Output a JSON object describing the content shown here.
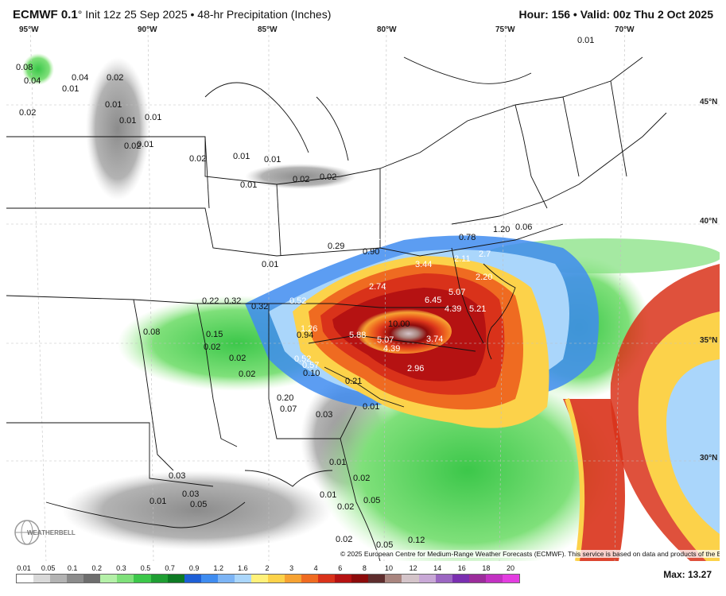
{
  "header": {
    "model": "ECMWF 0.1",
    "degree": "°",
    "init": "Init 12z 25 Sep 2025 • 48-hr Precipitation (Inches)",
    "valid": "Hour: 156 • Valid: 00z Thu 2 Oct 2025"
  },
  "coords": {
    "lon_95": "95°W",
    "lon_90": "90°W",
    "lon_85": "85°W",
    "lon_80": "80°W",
    "lon_75": "75°W",
    "lon_70": "70°W",
    "lat_45": "45°N",
    "lat_40": "40°N",
    "lat_35": "35°N",
    "lat_30": "30°N"
  },
  "labels": [
    "0.08",
    "0.04",
    "0.02",
    "0.04",
    "0.01",
    "0.02",
    "0.01",
    "0.01",
    "0.01",
    "0.01",
    "0.02",
    "0.01",
    "0.01",
    "0.02",
    "0.01",
    "0.02",
    "0.02",
    "0.01",
    "0.29",
    "0.55",
    "0.49",
    "0.90",
    "0.78",
    "1.20",
    "0.06",
    "0.01",
    "3.44",
    "2.74",
    "5.07",
    "6.45",
    "4.39",
    "5.21",
    "0.22",
    "0.32",
    "0.32",
    "0.52",
    "0.08",
    "0.15",
    "0.02",
    "1.26",
    "0.94",
    "5.88",
    "10.00",
    "5.07",
    "4.39",
    "3.74",
    "2.96",
    "0.02",
    "0.02",
    "0.52",
    "0.57",
    "0.10",
    "0.21",
    "0.20",
    "0.07",
    "0.03",
    "0.01",
    "0.01",
    "0.03",
    "0.03",
    "0.01",
    "0.05",
    "0.02",
    "0.01",
    "0.02",
    "0.05",
    "0.12",
    "0.02",
    "0.05",
    "2.11",
    "2.20",
    "2.7"
  ],
  "credit": "© 2025 European Centre for Medium-Range Weather Forecasts (ECMWF). This service is based on data and products of the ECMWF.",
  "logo": "WEATHERBELL",
  "scale": {
    "ticks": [
      "0.01",
      "0.05",
      "0.1",
      "0.2",
      "0.3",
      "0.5",
      "0.7",
      "0.9",
      "1.2",
      "1.6",
      "2",
      "3",
      "4",
      "6",
      "8",
      "10",
      "12",
      "14",
      "16",
      "18",
      "20"
    ],
    "colors": [
      "#ffffff",
      "#d9d9d9",
      "#b3b3b3",
      "#8c8c8c",
      "#6e6e6e",
      "#b4f0a8",
      "#7fe07a",
      "#3cc74a",
      "#1f9e33",
      "#0e7a24",
      "#1e5fd6",
      "#3f8cf0",
      "#7cb4f5",
      "#aad6fb",
      "#fff17a",
      "#fcd24a",
      "#f6a232",
      "#ef6b21",
      "#d9321a",
      "#b51212",
      "#8c0b0b",
      "#5e2d2d",
      "#a9857f",
      "#d4c4c9",
      "#c8a8d6",
      "#9b66c2",
      "#7a2fb0",
      "#9b2c9b",
      "#c231c2",
      "#e33de0"
    ],
    "max_label": "Max:",
    "max_value": "13.27"
  }
}
